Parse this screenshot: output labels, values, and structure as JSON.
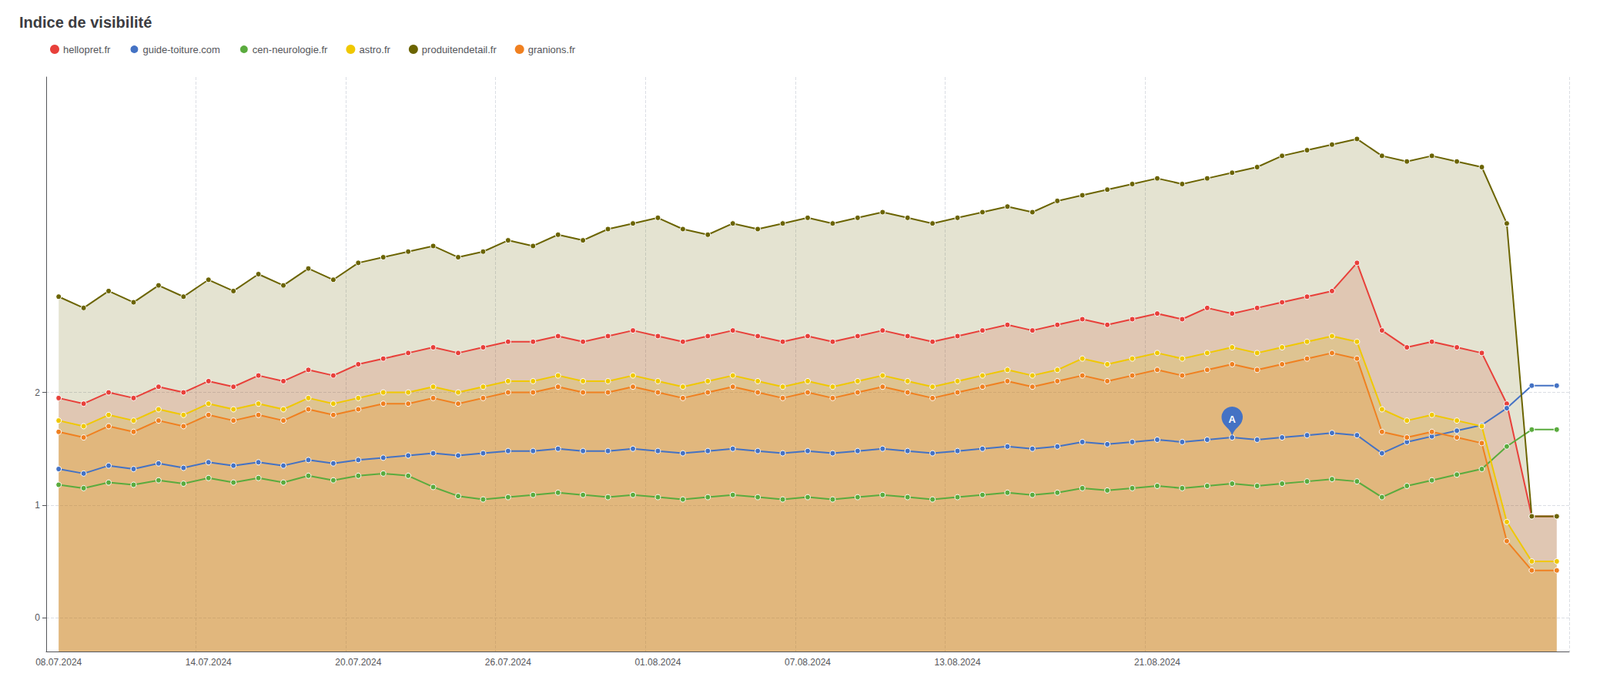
{
  "chart_data": {
    "type": "line",
    "title": "Indice de visibilité",
    "categories": [
      "08.07.2024",
      null,
      null,
      null,
      null,
      null,
      "14.07.2024",
      null,
      null,
      null,
      null,
      null,
      "20.07.2024",
      null,
      null,
      null,
      null,
      null,
      "26.07.2024",
      null,
      null,
      null,
      null,
      null,
      "01.08.2024",
      null,
      null,
      null,
      null,
      null,
      "07.08.2024",
      null,
      null,
      null,
      null,
      null,
      "13.08.2024",
      null,
      null,
      null,
      null,
      null,
      null,
      null,
      "21.08.2024",
      null,
      null,
      null,
      null,
      null,
      null,
      null,
      null,
      null,
      null,
      null,
      null,
      null,
      null,
      null,
      null
    ],
    "series": [
      {
        "name": "hellopret.fr",
        "type": "area",
        "color": "#e8403a",
        "values": [
          1.95,
          1.9,
          2.0,
          1.95,
          2.05,
          2.0,
          2.1,
          2.05,
          2.15,
          2.1,
          2.2,
          2.15,
          2.25,
          2.3,
          2.35,
          2.4,
          2.35,
          2.4,
          2.45,
          2.45,
          2.5,
          2.45,
          2.5,
          2.55,
          2.5,
          2.45,
          2.5,
          2.55,
          2.5,
          2.45,
          2.5,
          2.45,
          2.5,
          2.55,
          2.5,
          2.45,
          2.5,
          2.55,
          2.6,
          2.55,
          2.6,
          2.65,
          2.6,
          2.65,
          2.7,
          2.65,
          2.75,
          2.7,
          2.75,
          2.8,
          2.85,
          2.9,
          3.15,
          2.55,
          2.4,
          2.45,
          2.4,
          2.35,
          1.9,
          0.9,
          0.9
        ]
      },
      {
        "name": "guide-toiture.com",
        "type": "line",
        "color": "#4472c4",
        "values": [
          1.32,
          1.28,
          1.35,
          1.32,
          1.37,
          1.33,
          1.38,
          1.35,
          1.38,
          1.35,
          1.4,
          1.37,
          1.4,
          1.42,
          1.44,
          1.46,
          1.44,
          1.46,
          1.48,
          1.48,
          1.5,
          1.48,
          1.48,
          1.5,
          1.48,
          1.46,
          1.48,
          1.5,
          1.48,
          1.46,
          1.48,
          1.46,
          1.48,
          1.5,
          1.48,
          1.46,
          1.48,
          1.5,
          1.52,
          1.5,
          1.52,
          1.56,
          1.54,
          1.56,
          1.58,
          1.56,
          1.58,
          1.6,
          1.58,
          1.6,
          1.62,
          1.64,
          1.62,
          1.46,
          1.56,
          1.61,
          1.66,
          1.71,
          1.86,
          2.06,
          2.06
        ]
      },
      {
        "name": "cen-neurologie.fr",
        "type": "line",
        "color": "#5aab3e",
        "values": [
          1.18,
          1.15,
          1.2,
          1.18,
          1.22,
          1.19,
          1.24,
          1.2,
          1.24,
          1.2,
          1.26,
          1.22,
          1.26,
          1.28,
          1.26,
          1.16,
          1.08,
          1.05,
          1.07,
          1.09,
          1.11,
          1.09,
          1.07,
          1.09,
          1.07,
          1.05,
          1.07,
          1.09,
          1.07,
          1.05,
          1.07,
          1.05,
          1.07,
          1.09,
          1.07,
          1.05,
          1.07,
          1.09,
          1.11,
          1.09,
          1.11,
          1.15,
          1.13,
          1.15,
          1.17,
          1.15,
          1.17,
          1.19,
          1.17,
          1.19,
          1.21,
          1.23,
          1.21,
          1.07,
          1.17,
          1.22,
          1.27,
          1.32,
          1.52,
          1.67,
          1.67
        ]
      },
      {
        "name": "astro.fr",
        "type": "area",
        "color": "#f0c800",
        "values": [
          1.75,
          1.7,
          1.8,
          1.75,
          1.85,
          1.8,
          1.9,
          1.85,
          1.9,
          1.85,
          1.95,
          1.9,
          1.95,
          2.0,
          2.0,
          2.05,
          2.0,
          2.05,
          2.1,
          2.1,
          2.15,
          2.1,
          2.1,
          2.15,
          2.1,
          2.05,
          2.1,
          2.15,
          2.1,
          2.05,
          2.1,
          2.05,
          2.1,
          2.15,
          2.1,
          2.05,
          2.1,
          2.15,
          2.2,
          2.15,
          2.2,
          2.3,
          2.25,
          2.3,
          2.35,
          2.3,
          2.35,
          2.4,
          2.35,
          2.4,
          2.45,
          2.5,
          2.45,
          1.85,
          1.75,
          1.8,
          1.75,
          1.7,
          0.85,
          0.5,
          0.5
        ]
      },
      {
        "name": "produitendetail.fr",
        "type": "area",
        "color": "#6b6400",
        "values": [
          2.85,
          2.75,
          2.9,
          2.8,
          2.95,
          2.85,
          3.0,
          2.9,
          3.05,
          2.95,
          3.1,
          3.0,
          3.15,
          3.2,
          3.25,
          3.3,
          3.2,
          3.25,
          3.35,
          3.3,
          3.4,
          3.35,
          3.45,
          3.5,
          3.55,
          3.45,
          3.4,
          3.5,
          3.45,
          3.5,
          3.55,
          3.5,
          3.55,
          3.6,
          3.55,
          3.5,
          3.55,
          3.6,
          3.65,
          3.6,
          3.7,
          3.75,
          3.8,
          3.85,
          3.9,
          3.85,
          3.9,
          3.95,
          4.0,
          4.1,
          4.15,
          4.2,
          4.25,
          4.1,
          4.05,
          4.1,
          4.05,
          4.0,
          3.5,
          0.9,
          0.9
        ]
      },
      {
        "name": "granions.fr",
        "type": "area",
        "color": "#f08020",
        "values": [
          1.65,
          1.6,
          1.7,
          1.65,
          1.75,
          1.7,
          1.8,
          1.75,
          1.8,
          1.75,
          1.85,
          1.8,
          1.85,
          1.9,
          1.9,
          1.95,
          1.9,
          1.95,
          2.0,
          2.0,
          2.05,
          2.0,
          2.0,
          2.05,
          2.0,
          1.95,
          2.0,
          2.05,
          2.0,
          1.95,
          2.0,
          1.95,
          2.0,
          2.05,
          2.0,
          1.95,
          2.0,
          2.05,
          2.1,
          2.05,
          2.1,
          2.15,
          2.1,
          2.15,
          2.2,
          2.15,
          2.2,
          2.25,
          2.2,
          2.25,
          2.3,
          2.35,
          2.3,
          1.65,
          1.6,
          1.65,
          1.6,
          1.55,
          0.68,
          0.42,
          0.42
        ]
      }
    ],
    "annotations": [
      {
        "text": "A",
        "series": "guide-toiture.com",
        "x": 47,
        "y": 1.6
      }
    ],
    "ylim": [
      -0.3,
      4.8
    ],
    "yticks": [
      0,
      1,
      2
    ],
    "grid": true,
    "legend": "upper left",
    "marker": "circle"
  }
}
